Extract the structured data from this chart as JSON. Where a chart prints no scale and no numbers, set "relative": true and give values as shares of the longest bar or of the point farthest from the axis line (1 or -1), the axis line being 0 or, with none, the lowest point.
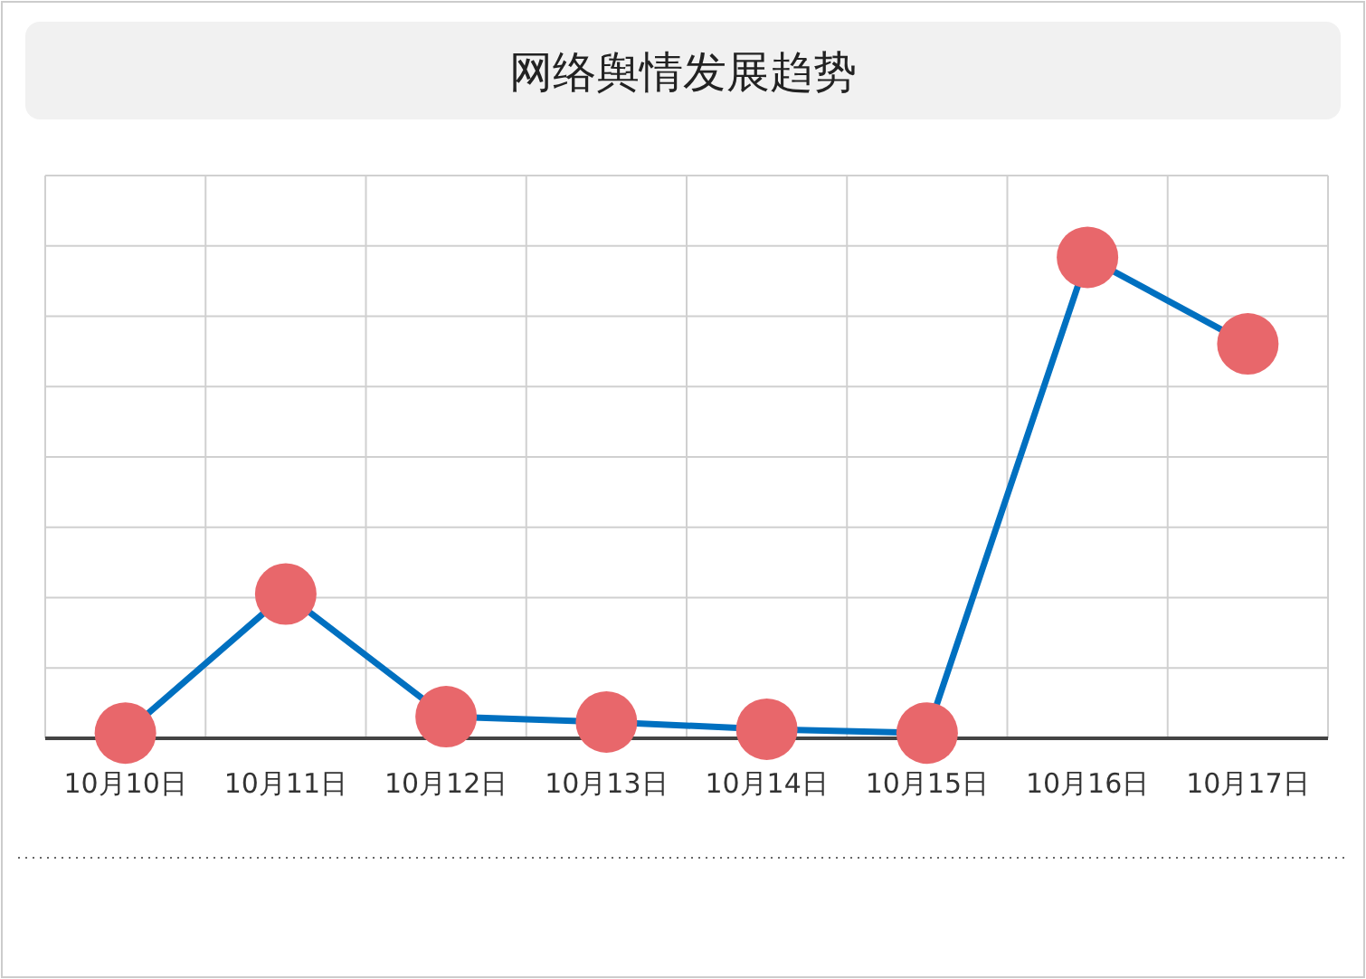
{
  "chart_data": {
    "type": "line",
    "title": "网络舆情发展趋势",
    "relative": true,
    "grid": true,
    "marker": "circle",
    "line_style": "solid",
    "categories": [
      "10月10日",
      "10月11日",
      "10月12日",
      "10月13日",
      "10月14日",
      "10月15日",
      "10月16日",
      "10月17日"
    ],
    "series": [
      {
        "color": "#0070c0",
        "colors": [
          "#e8676b",
          "#e8676b",
          "#e8676b",
          "#e8676b",
          "#e8676b",
          "#e8676b",
          "#e8676b",
          "#e8676b"
        ],
        "values": [
          0.011,
          0.3,
          0.045,
          0.034,
          0.019,
          0.011,
          1,
          0.82
        ]
      }
    ]
  }
}
